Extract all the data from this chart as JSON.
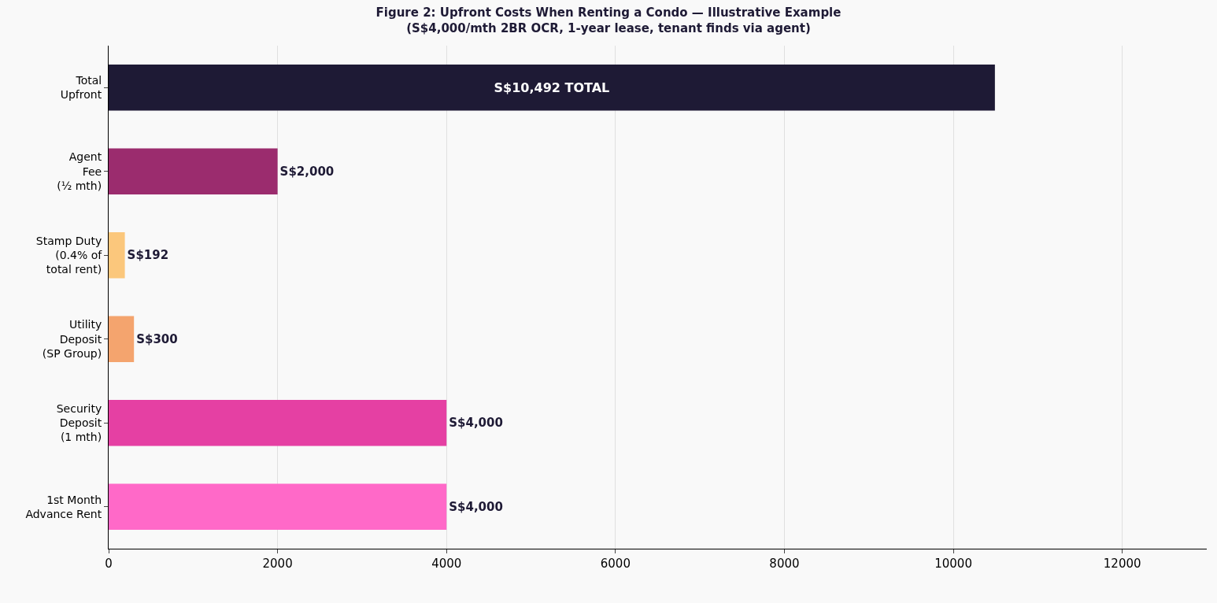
{
  "chart_data": {
    "type": "bar",
    "orientation": "horizontal",
    "title": "Figure 2: Upfront Costs When Renting a Condo — Illustrative Example",
    "subtitle": "(S$4,000/mth 2BR OCR, 1-year lease, tenant finds via agent)",
    "categories": [
      "Total\nUpfront",
      "Agent\nFee\n(½ mth)",
      "Stamp Duty\n(0.4% of\ntotal rent)",
      "Utility\nDeposit\n(SP Group)",
      "Security\nDeposit\n(1 mth)",
      "1st Month\nAdvance Rent"
    ],
    "values": [
      10492,
      2000,
      192,
      300,
      4000,
      4000
    ],
    "colors": [
      "#1e1a35",
      "#9b2c6e",
      "#fbc77c",
      "#f4a46e",
      "#e540a3",
      "#ff69c8"
    ],
    "value_labels": [
      "S$10,492 TOTAL",
      "S$2,000",
      "S$192",
      "S$300",
      "S$4,000",
      "S$4,000"
    ],
    "xlim": [
      0,
      13000
    ],
    "xticks": [
      0,
      2000,
      4000,
      6000,
      8000,
      10000,
      12000
    ],
    "grid": "x"
  }
}
